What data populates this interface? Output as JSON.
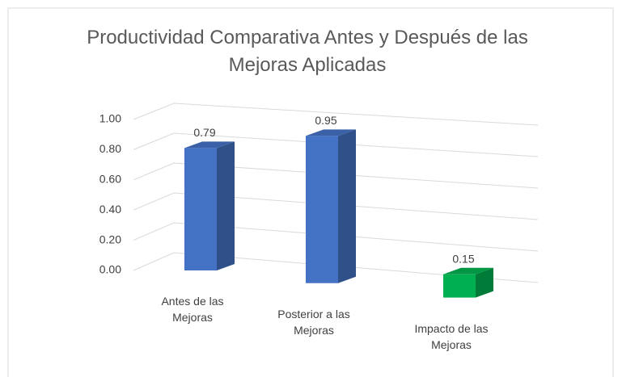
{
  "chart_data": {
    "type": "bar3d",
    "title": "Productividad Comparativa Antes y Después de las Mejoras Aplicadas",
    "categories": [
      "Antes de las Mejoras",
      "Posterior a las Mejoras",
      "Impacto de las Mejoras"
    ],
    "values": [
      0.79,
      0.95,
      0.15
    ],
    "colors": [
      "#4472c4",
      "#4472c4",
      "#00b050"
    ],
    "ylim": [
      0,
      1
    ],
    "yticks": [
      {
        "value": 0,
        "label": "0.00"
      },
      {
        "value": 0.2,
        "label": "0.20"
      },
      {
        "value": 0.4,
        "label": "0.40"
      },
      {
        "value": 0.6,
        "label": "0.60"
      },
      {
        "value": 0.8,
        "label": "0.80"
      },
      {
        "value": 1,
        "label": "1.00"
      }
    ],
    "grid": true
  }
}
